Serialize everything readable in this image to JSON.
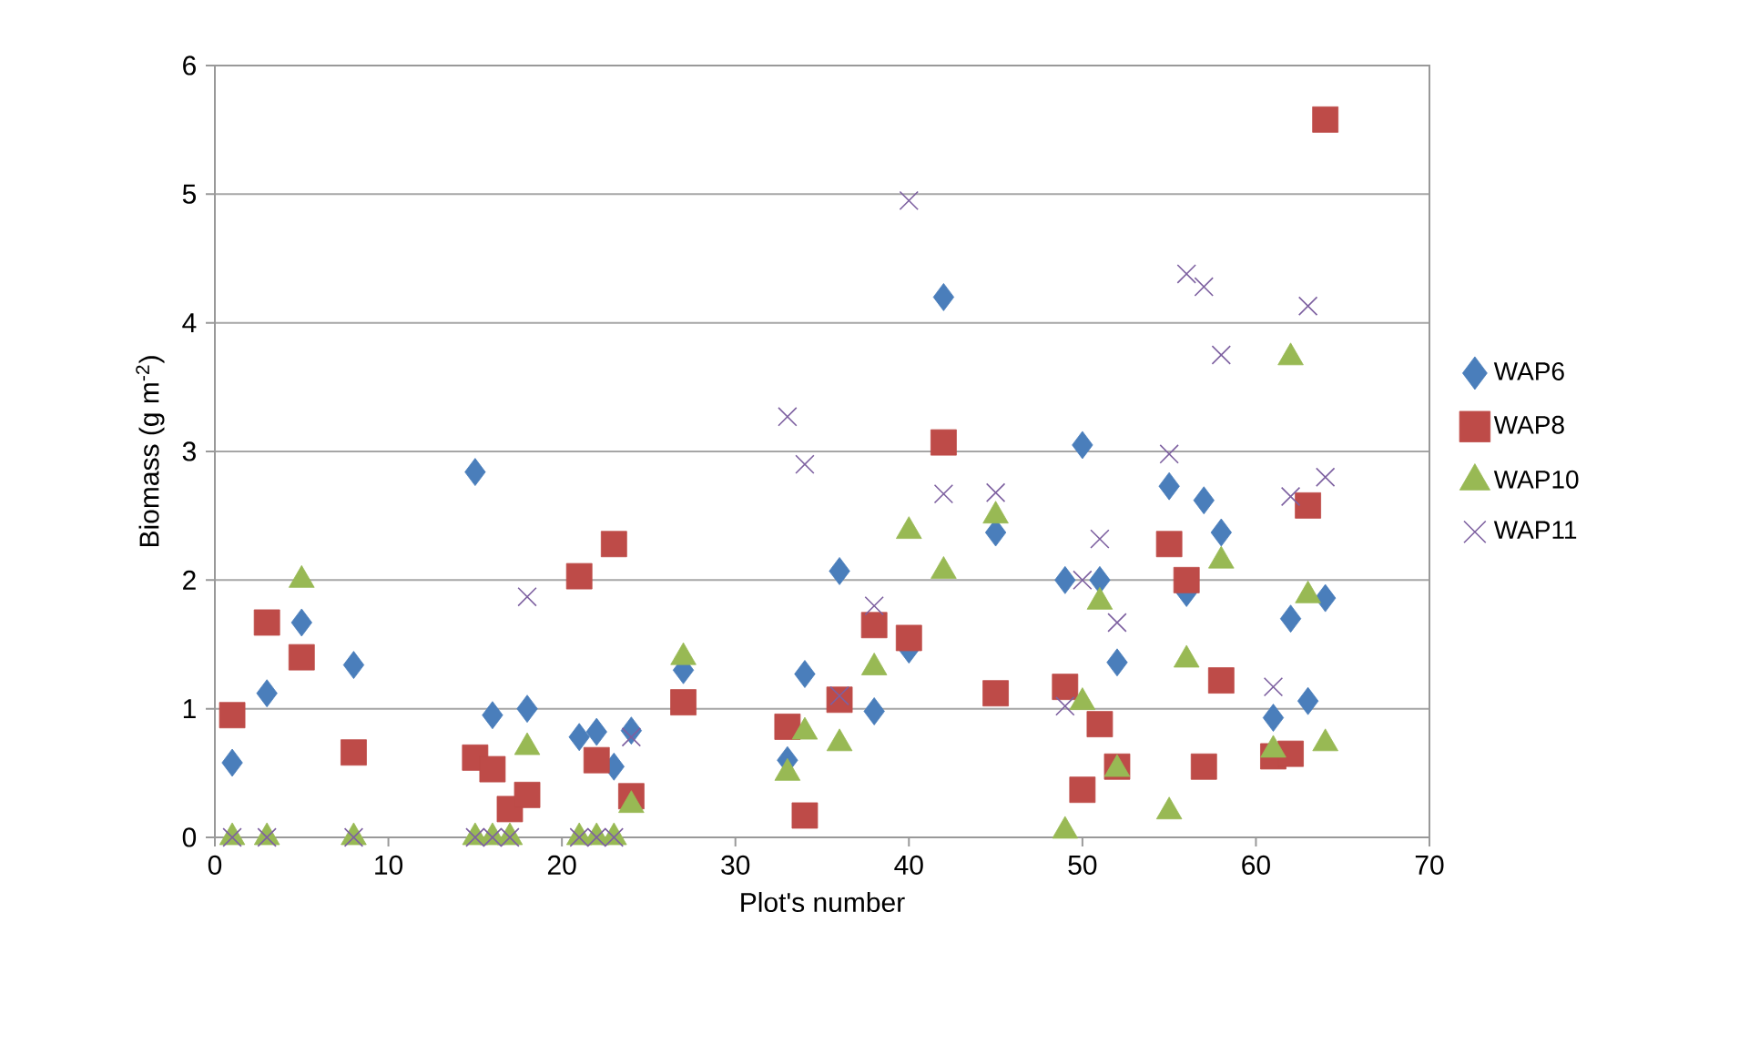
{
  "chart_data": {
    "type": "scatter",
    "xlabel": "Plot's number",
    "ylabel": "Biomass (g m$^{-2}$)",
    "xlim": [
      0,
      70
    ],
    "xticks": [
      0,
      10,
      20,
      30,
      40,
      50,
      60,
      70
    ],
    "ylim": [
      0,
      6
    ],
    "yticks": [
      0,
      1,
      2,
      3,
      4,
      5,
      6
    ],
    "grid": "y",
    "legend": "right",
    "series": [
      {
        "name": "WAP6",
        "color": "#4a7ebb",
        "marker": "diamond",
        "x": [
          1,
          3,
          5,
          8,
          15,
          16,
          18,
          21,
          22,
          23,
          24,
          27,
          33,
          34,
          36,
          38,
          40,
          42,
          45,
          49,
          50,
          51,
          52,
          55,
          56,
          57,
          58,
          61,
          62,
          63,
          64
        ],
        "values": [
          0.58,
          1.12,
          1.67,
          1.34,
          2.84,
          0.95,
          1.0,
          0.78,
          0.82,
          0.55,
          0.83,
          1.3,
          0.6,
          1.27,
          2.07,
          0.98,
          1.46,
          4.2,
          2.37,
          2.0,
          3.05,
          2.0,
          1.36,
          2.73,
          1.9,
          2.62,
          2.37,
          0.93,
          1.7,
          1.06,
          1.86
        ]
      },
      {
        "name": "WAP8",
        "color": "#be4b48",
        "marker": "square",
        "x": [
          1,
          3,
          5,
          8,
          15,
          16,
          17,
          18,
          21,
          22,
          23,
          24,
          27,
          33,
          34,
          36,
          38,
          40,
          42,
          45,
          49,
          50,
          51,
          52,
          55,
          56,
          57,
          58,
          61,
          62,
          63,
          64
        ],
        "values": [
          0.95,
          1.67,
          1.4,
          0.66,
          0.62,
          0.53,
          0.22,
          0.33,
          2.03,
          0.6,
          2.28,
          0.32,
          1.05,
          0.86,
          0.17,
          1.07,
          1.65,
          1.55,
          3.07,
          1.12,
          1.17,
          0.37,
          0.88,
          0.55,
          2.28,
          2.0,
          0.55,
          1.22,
          0.63,
          0.65,
          2.58,
          5.58
        ]
      },
      {
        "name": "WAP10",
        "color": "#98b954",
        "marker": "triangle",
        "x": [
          1,
          3,
          5,
          8,
          15,
          16,
          17,
          18,
          21,
          22,
          23,
          24,
          27,
          33,
          34,
          36,
          38,
          40,
          42,
          45,
          49,
          50,
          51,
          52,
          55,
          56,
          58,
          61,
          62,
          63,
          64
        ],
        "values": [
          0,
          0,
          2.0,
          0,
          0,
          0,
          0,
          0.7,
          0,
          0,
          0,
          0.25,
          1.4,
          0.5,
          0.82,
          0.73,
          1.32,
          2.38,
          2.07,
          2.5,
          0.05,
          1.05,
          1.83,
          0.53,
          0.2,
          1.38,
          2.15,
          0.68,
          3.73,
          1.88,
          0.73
        ]
      },
      {
        "name": "WAP11",
        "color": "#7d60a0",
        "marker": "cross",
        "x": [
          1,
          3,
          8,
          15,
          16,
          17,
          18,
          21,
          22,
          23,
          24,
          33,
          34,
          36,
          38,
          40,
          42,
          45,
          49,
          50,
          51,
          52,
          55,
          56,
          57,
          58,
          61,
          62,
          63,
          64
        ],
        "values": [
          0,
          0,
          0,
          0,
          0,
          0,
          1.87,
          0,
          0,
          0,
          0.78,
          3.27,
          2.9,
          1.1,
          1.8,
          4.95,
          2.67,
          2.68,
          1.02,
          2.0,
          2.32,
          1.67,
          2.98,
          4.38,
          4.28,
          3.75,
          1.17,
          2.65,
          4.13,
          2.8
        ]
      }
    ]
  }
}
